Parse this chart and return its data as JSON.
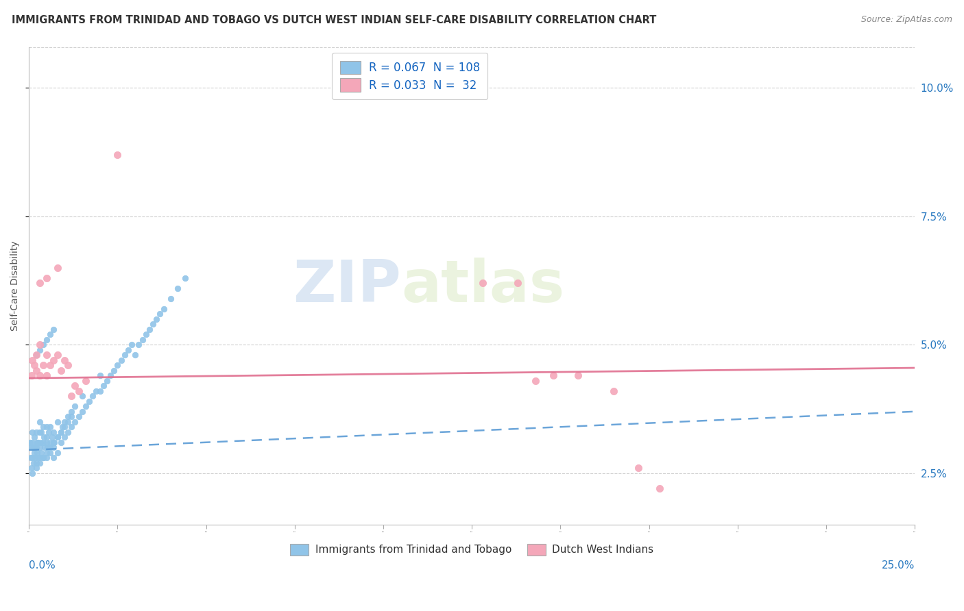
{
  "title": "IMMIGRANTS FROM TRINIDAD AND TOBAGO VS DUTCH WEST INDIAN SELF-CARE DISABILITY CORRELATION CHART",
  "source": "Source: ZipAtlas.com",
  "ylabel": "Self-Care Disability",
  "ylabel_right_ticks": [
    "2.5%",
    "5.0%",
    "7.5%",
    "10.0%"
  ],
  "ylabel_right_vals": [
    0.025,
    0.05,
    0.075,
    0.1
  ],
  "xlim": [
    0.0,
    0.25
  ],
  "ylim": [
    0.015,
    0.108
  ],
  "legend_label1": "Immigrants from Trinidad and Tobago",
  "legend_label2": "Dutch West Indians",
  "blue_color": "#90c4e8",
  "pink_color": "#f4a7b9",
  "blue_line_color": "#5b9bd5",
  "pink_line_color": "#e07090",
  "blue_trend_x": [
    0.0,
    0.25
  ],
  "blue_trend_y": [
    0.0295,
    0.037
  ],
  "pink_trend_x": [
    0.0,
    0.25
  ],
  "pink_trend_y": [
    0.0435,
    0.0455
  ],
  "blue_x": [
    0.0003,
    0.0005,
    0.0007,
    0.0008,
    0.001,
    0.001,
    0.001,
    0.0012,
    0.0013,
    0.0015,
    0.0015,
    0.0017,
    0.0018,
    0.002,
    0.002,
    0.002,
    0.0022,
    0.0023,
    0.0025,
    0.0025,
    0.003,
    0.003,
    0.003,
    0.003,
    0.0032,
    0.0035,
    0.0035,
    0.004,
    0.004,
    0.004,
    0.0042,
    0.0045,
    0.005,
    0.005,
    0.005,
    0.005,
    0.0052,
    0.0055,
    0.006,
    0.006,
    0.006,
    0.0065,
    0.007,
    0.007,
    0.007,
    0.0072,
    0.008,
    0.008,
    0.008,
    0.009,
    0.009,
    0.0095,
    0.01,
    0.01,
    0.011,
    0.011,
    0.012,
    0.012,
    0.013,
    0.013,
    0.014,
    0.015,
    0.015,
    0.016,
    0.017,
    0.018,
    0.019,
    0.02,
    0.02,
    0.021,
    0.022,
    0.023,
    0.024,
    0.025,
    0.026,
    0.027,
    0.028,
    0.029,
    0.03,
    0.031,
    0.032,
    0.033,
    0.034,
    0.035,
    0.036,
    0.037,
    0.038,
    0.04,
    0.042,
    0.044,
    0.001,
    0.002,
    0.003,
    0.004,
    0.005,
    0.006,
    0.007,
    0.008,
    0.009,
    0.01,
    0.011,
    0.012,
    0.002,
    0.003,
    0.004,
    0.005,
    0.006,
    0.007
  ],
  "blue_y": [
    0.031,
    0.028,
    0.03,
    0.026,
    0.028,
    0.031,
    0.033,
    0.03,
    0.027,
    0.029,
    0.032,
    0.03,
    0.028,
    0.027,
    0.03,
    0.033,
    0.031,
    0.029,
    0.028,
    0.031,
    0.03,
    0.033,
    0.028,
    0.035,
    0.031,
    0.033,
    0.029,
    0.031,
    0.034,
    0.028,
    0.032,
    0.03,
    0.031,
    0.034,
    0.028,
    0.032,
    0.03,
    0.033,
    0.031,
    0.034,
    0.029,
    0.032,
    0.03,
    0.033,
    0.028,
    0.031,
    0.032,
    0.035,
    0.029,
    0.033,
    0.031,
    0.034,
    0.032,
    0.035,
    0.033,
    0.036,
    0.034,
    0.037,
    0.035,
    0.038,
    0.036,
    0.037,
    0.04,
    0.038,
    0.039,
    0.04,
    0.041,
    0.041,
    0.044,
    0.042,
    0.043,
    0.044,
    0.045,
    0.046,
    0.047,
    0.048,
    0.049,
    0.05,
    0.048,
    0.05,
    0.051,
    0.052,
    0.053,
    0.054,
    0.055,
    0.056,
    0.057,
    0.059,
    0.061,
    0.063,
    0.025,
    0.026,
    0.027,
    0.028,
    0.029,
    0.03,
    0.031,
    0.032,
    0.033,
    0.034,
    0.035,
    0.036,
    0.048,
    0.049,
    0.05,
    0.051,
    0.052,
    0.053
  ],
  "pink_x": [
    0.0008,
    0.001,
    0.0015,
    0.002,
    0.002,
    0.003,
    0.003,
    0.004,
    0.005,
    0.005,
    0.006,
    0.007,
    0.008,
    0.009,
    0.01,
    0.011,
    0.012,
    0.013,
    0.014,
    0.016,
    0.025,
    0.008,
    0.005,
    0.003,
    0.128,
    0.138,
    0.143,
    0.148,
    0.155,
    0.165,
    0.172,
    0.178
  ],
  "pink_y": [
    0.044,
    0.047,
    0.046,
    0.045,
    0.048,
    0.05,
    0.044,
    0.046,
    0.044,
    0.048,
    0.046,
    0.047,
    0.048,
    0.045,
    0.047,
    0.046,
    0.04,
    0.042,
    0.041,
    0.043,
    0.087,
    0.065,
    0.063,
    0.062,
    0.062,
    0.062,
    0.043,
    0.044,
    0.044,
    0.041,
    0.026,
    0.022
  ]
}
